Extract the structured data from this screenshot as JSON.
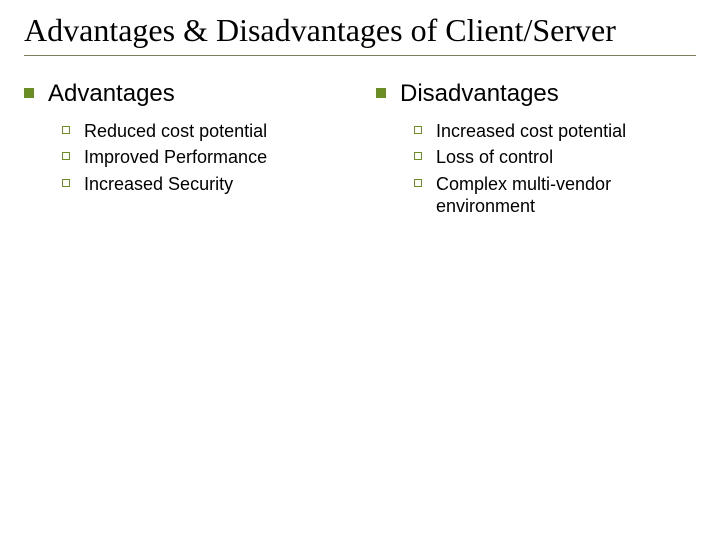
{
  "slide": {
    "title": "Advantages & Disadvantages of Client/Server",
    "title_fontsize": 32,
    "title_color": "#000000",
    "title_underline_color": "#7f7f5f",
    "background_color": "#ffffff",
    "bullet_lvl1": {
      "color": "#6b8e23",
      "size": 10,
      "fontsize": 24,
      "text_color": "#000000"
    },
    "bullet_lvl2": {
      "border_color": "#6b8e23",
      "size": 8,
      "margin_top": 6,
      "fontsize": 18,
      "text_color": "#000000"
    },
    "columns": [
      {
        "heading": "Advantages",
        "items": [
          "Reduced cost potential",
          "Improved Performance",
          "Increased Security"
        ]
      },
      {
        "heading": "Disadvantages",
        "items": [
          "Increased cost potential",
          "Loss of control",
          "Complex multi-vendor environment"
        ]
      }
    ]
  }
}
